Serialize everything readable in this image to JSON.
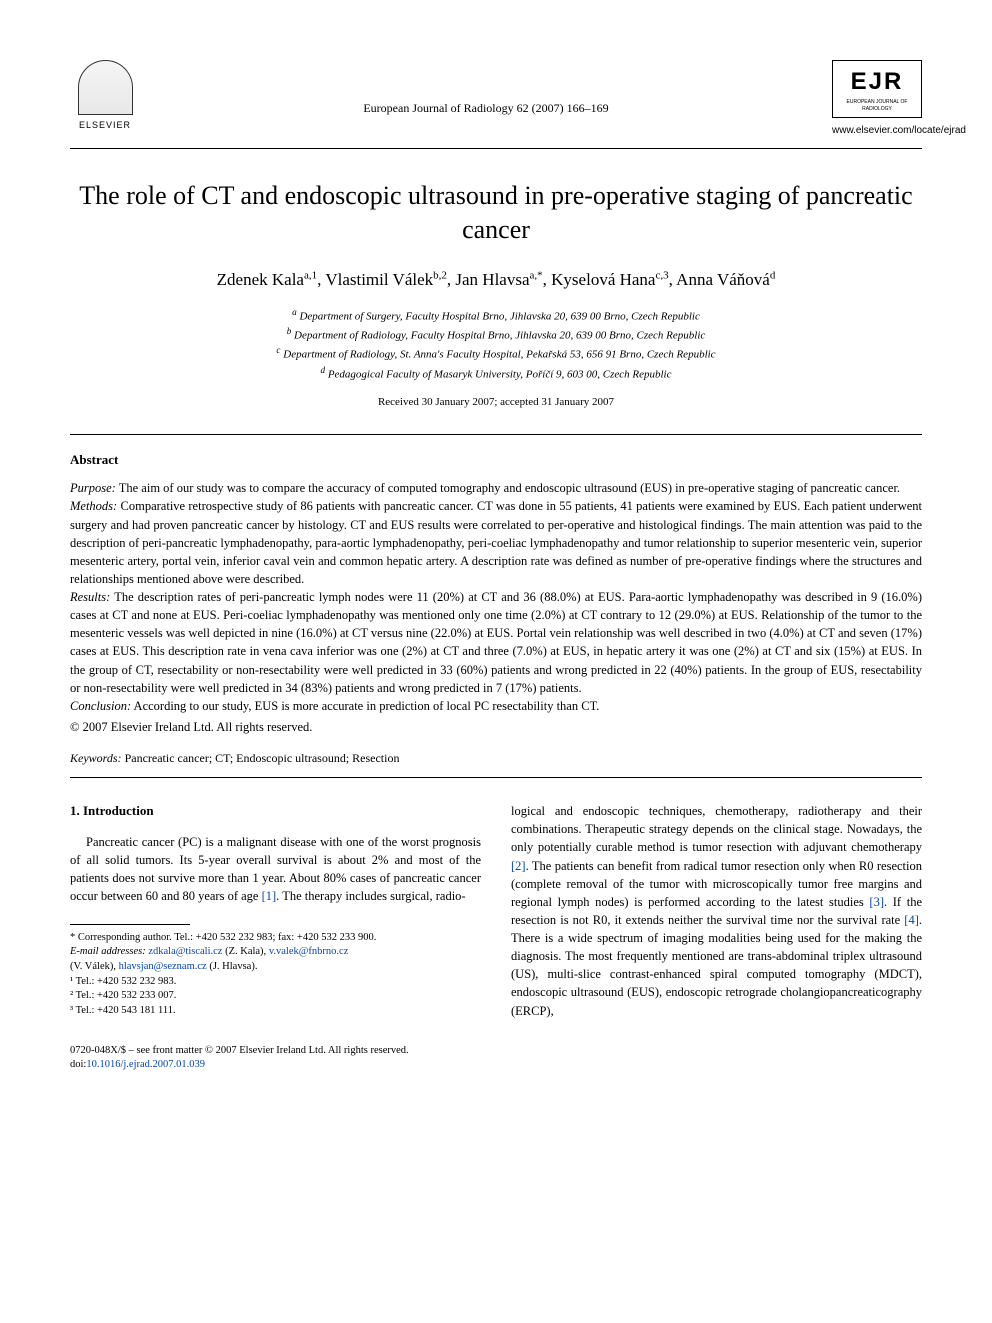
{
  "header": {
    "publisher": "ELSEVIER",
    "journal_ref": "European Journal of Radiology 62 (2007) 166–169",
    "ejr_abbrev": "EJR",
    "ejr_full": "EUROPEAN JOURNAL OF RADIOLOGY",
    "journal_url": "www.elsevier.com/locate/ejrad"
  },
  "title": "The role of CT and endoscopic ultrasound in pre-operative staging of pancreatic cancer",
  "authors_html": "Zdenek Kala<sup>a,1</sup>, Vlastimil Válek<sup>b,2</sup>, Jan Hlavsa<sup>a,*</sup>, Kyselová Hana<sup>c,3</sup>, Anna Váňová<sup>d</sup>",
  "affiliations": {
    "a": "Department of Surgery, Faculty Hospital Brno, Jihlavska 20, 639 00 Brno, Czech Republic",
    "b": "Department of Radiology, Faculty Hospital Brno, Jihlavska 20, 639 00 Brno, Czech Republic",
    "c": "Department of Radiology, St. Anna's Faculty Hospital, Pekařská 53, 656 91 Brno, Czech Republic",
    "d": "Pedagogical Faculty of Masaryk University, Poříčí 9, 603 00, Czech Republic"
  },
  "dates": "Received 30 January 2007; accepted 31 January 2007",
  "abstract": {
    "heading": "Abstract",
    "purpose_label": "Purpose:",
    "purpose": "The aim of our study was to compare the accuracy of computed tomography and endoscopic ultrasound (EUS) in pre-operative staging of pancreatic cancer.",
    "methods_label": "Methods:",
    "methods": "Comparative retrospective study of 86 patients with pancreatic cancer. CT was done in 55 patients, 41 patients were examined by EUS. Each patient underwent surgery and had proven pancreatic cancer by histology. CT and EUS results were correlated to per-operative and histological findings. The main attention was paid to the description of peri-pancreatic lymphadenopathy, para-aortic lymphadenopathy, peri-coeliac lymphadenopathy and tumor relationship to superior mesenteric vein, superior mesenteric artery, portal vein, inferior caval vein and common hepatic artery. A description rate was defined as number of pre-operative findings where the structures and relationships mentioned above were described.",
    "results_label": "Results:",
    "results": "The description rates of peri-pancreatic lymph nodes were 11 (20%) at CT and 36 (88.0%) at EUS. Para-aortic lymphadenopathy was described in 9 (16.0%) cases at CT and none at EUS. Peri-coeliac lymphadenopathy was mentioned only one time (2.0%) at CT contrary to 12 (29.0%) at EUS. Relationship of the tumor to the mesenteric vessels was well depicted in nine (16.0%) at CT versus nine (22.0%) at EUS. Portal vein relationship was well described in two (4.0%) at CT and seven (17%) cases at EUS. This description rate in vena cava inferior was one (2%) at CT and three (7.0%) at EUS, in hepatic artery it was one (2%) at CT and six (15%) at EUS. In the group of CT, resectability or non-resectability were well predicted in 33 (60%) patients and wrong predicted in 22 (40%) patients. In the group of EUS, resectability or non-resectability were well predicted in 34 (83%) patients and wrong predicted in 7 (17%) patients.",
    "conclusion_label": "Conclusion:",
    "conclusion": "According to our study, EUS is more accurate in prediction of local PC resectability than CT.",
    "copyright": "© 2007 Elsevier Ireland Ltd. All rights reserved."
  },
  "keywords": {
    "label": "Keywords:",
    "text": "Pancreatic cancer; CT; Endoscopic ultrasound; Resection"
  },
  "section1": {
    "heading": "1. Introduction",
    "col1_para": "Pancreatic cancer (PC) is a malignant disease with one of the worst prognosis of all solid tumors. Its 5-year overall survival is about 2% and most of the patients does not survive more than 1 year. About 80% cases of pancreatic cancer occur between 60 and 80 years of age ",
    "ref1": "[1]",
    "col1_tail": ". The therapy includes surgical, radio-",
    "col2_pre": "logical and endoscopic techniques, chemotherapy, radiotherapy and their combinations. Therapeutic strategy depends on the clinical stage. Nowadays, the only potentially curable method is tumor resection with adjuvant chemotherapy ",
    "ref2": "[2]",
    "col2_mid1": ". The patients can benefit from radical tumor resection only when R0 resection (complete removal of the tumor with microscopically tumor free margins and regional lymph nodes) is performed according to the latest studies ",
    "ref3": "[3]",
    "col2_mid2": ". If the resection is not R0, it extends neither the survival time nor the survival rate ",
    "ref4": "[4]",
    "col2_tail": ". There is a wide spectrum of imaging modalities being used for the making the diagnosis. The most frequently mentioned are trans-abdominal triplex ultrasound (US), multi-slice contrast-enhanced spiral computed tomography (MDCT), endoscopic ultrasound (EUS), endoscopic retrograde cholangiopancreaticography (ERCP),"
  },
  "footnotes": {
    "corresponding": "* Corresponding author. Tel.: +420 532 232 983; fax: +420 532 233 900.",
    "email_label": "E-mail addresses:",
    "email1": "zdkala@tiscali.cz",
    "email1_who": " (Z. Kala), ",
    "email2": "v.valek@fnbrno.cz",
    "email2_who": "(V. Válek), ",
    "email3": "hlavsjan@seznam.cz",
    "email3_who": " (J. Hlavsa).",
    "n1": "¹ Tel.: +420 532 232 983.",
    "n2": "² Tel.: +420 532 233 007.",
    "n3": "³ Tel.: +420 543 181 111."
  },
  "bottom": {
    "issn_line": "0720-048X/$ – see front matter © 2007 Elsevier Ireland Ltd. All rights reserved.",
    "doi_label": "doi:",
    "doi": "10.1016/j.ejrad.2007.01.039"
  },
  "colors": {
    "link": "#0645ad",
    "text": "#000000",
    "bg": "#ffffff"
  }
}
